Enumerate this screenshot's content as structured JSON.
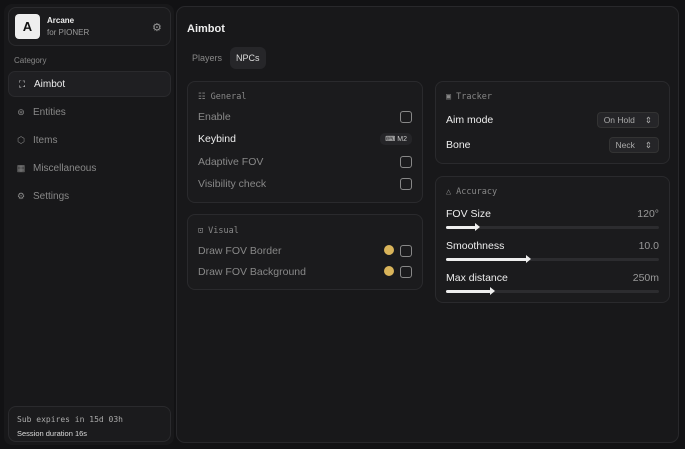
{
  "app": {
    "logo_letter": "A",
    "name": "Arcane",
    "subtitle": "for PIONER"
  },
  "sidebar": {
    "category_label": "Category",
    "items": [
      {
        "label": "Aimbot",
        "icon": "crosshair-icon",
        "active": true
      },
      {
        "label": "Entities",
        "icon": "entities-icon"
      },
      {
        "label": "Items",
        "icon": "cube-icon"
      },
      {
        "label": "Miscellaneous",
        "icon": "grid-icon"
      },
      {
        "label": "Settings",
        "icon": "gear-icon"
      }
    ]
  },
  "footer": {
    "sub": "Sub expires in 15d 03h",
    "session": "Session duration 16s"
  },
  "main": {
    "title": "Aimbot",
    "tabs": [
      {
        "label": "Players"
      },
      {
        "label": "NPCs",
        "active": true
      }
    ]
  },
  "general": {
    "title": "General",
    "enable": "Enable",
    "keybind": "Keybind",
    "keybind_value": "M2",
    "adaptive": "Adaptive FOV",
    "visibility": "Visibility check"
  },
  "visual": {
    "title": "Visual",
    "border": "Draw FOV Border",
    "background": "Draw FOV Background",
    "color": "#d9b45a"
  },
  "tracker": {
    "title": "Tracker",
    "aim_mode": "Aim mode",
    "aim_mode_value": "On Hold",
    "bone": "Bone",
    "bone_value": "Neck"
  },
  "accuracy": {
    "title": "Accuracy",
    "sliders": [
      {
        "label": "FOV Size",
        "value": "120°",
        "fraction": 0.14
      },
      {
        "label": "Smoothness",
        "value": "10.0",
        "fraction": 0.38
      },
      {
        "label": "Max distance",
        "value": "250m",
        "fraction": 0.21
      }
    ]
  }
}
